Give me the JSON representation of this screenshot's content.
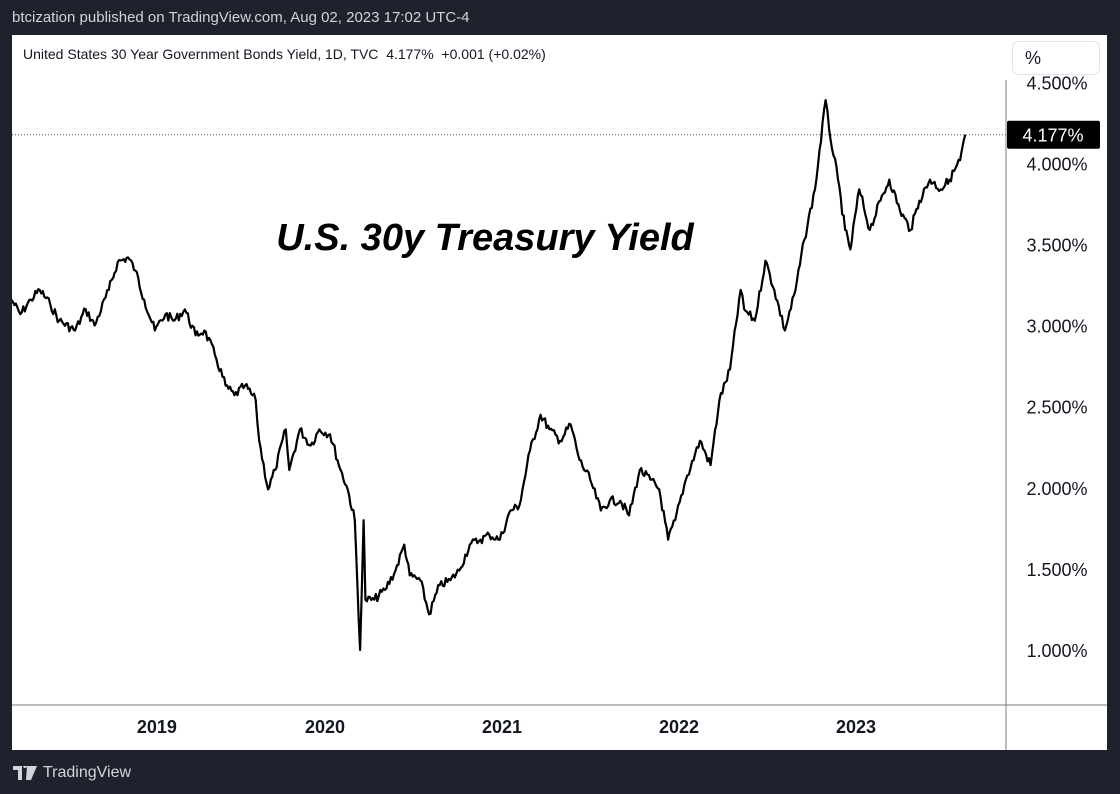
{
  "header": {
    "published": "btcization published on TradingView.com, Aug 02, 2023 17:02 UTC-4"
  },
  "legend": {
    "symbol": "United States 30 Year Government Bonds Yield, 1D, TVC",
    "last": "4.177%",
    "change": "+0.001 (+0.02%)"
  },
  "unit_button": "%",
  "footer": {
    "brand": "TradingView"
  },
  "chart_data": {
    "type": "line",
    "title": "U.S. 30y Treasury Yield",
    "xlabel": "",
    "ylabel": "",
    "ylim": [
      0.7,
      4.6
    ],
    "xlim": [
      2018.2,
      2023.8
    ],
    "yticks": [
      {
        "v": 4.5,
        "label": "4.500%"
      },
      {
        "v": 4.0,
        "label": "4.000%"
      },
      {
        "v": 3.5,
        "label": "3.500%"
      },
      {
        "v": 3.0,
        "label": "3.000%"
      },
      {
        "v": 2.5,
        "label": "2.500%"
      },
      {
        "v": 2.0,
        "label": "2.000%"
      },
      {
        "v": 1.5,
        "label": "1.500%"
      },
      {
        "v": 1.0,
        "label": "1.000%"
      }
    ],
    "xticks": [
      {
        "v": 2019.05,
        "label": "2019"
      },
      {
        "v": 2020.0,
        "label": "2020"
      },
      {
        "v": 2021.0,
        "label": "2021"
      },
      {
        "v": 2022.0,
        "label": "2022"
      },
      {
        "v": 2023.0,
        "label": "2023"
      }
    ],
    "last_value": 4.177,
    "last_label": "4.177%",
    "series": [
      {
        "name": "US30Y",
        "x": [
          2018.2,
          2018.25,
          2018.31,
          2018.36,
          2018.42,
          2018.47,
          2018.56,
          2018.62,
          2018.67,
          2018.75,
          2018.8,
          2018.86,
          2018.9,
          2018.95,
          2019.01,
          2019.07,
          2019.12,
          2019.18,
          2019.24,
          2019.29,
          2019.35,
          2019.41,
          2019.46,
          2019.52,
          2019.58,
          2019.6,
          2019.65,
          2019.69,
          2019.75,
          2019.77,
          2019.83,
          2019.89,
          2019.94,
          2020.0,
          2020.06,
          2020.1,
          2020.14,
          2020.17,
          2020.19,
          2020.2,
          2020.25,
          2020.31,
          2020.37,
          2020.42,
          2020.45,
          2020.51,
          2020.56,
          2020.62,
          2020.68,
          2020.73,
          2020.79,
          2020.85,
          2020.9,
          2020.96,
          2021.02,
          2021.07,
          2021.13,
          2021.19,
          2021.24,
          2021.3,
          2021.36,
          2021.41,
          2021.47,
          2021.53,
          2021.58,
          2021.64,
          2021.69,
          2021.75,
          2021.81,
          2021.86,
          2021.91,
          2021.95,
          2022.01,
          2022.09,
          2022.15,
          2022.2,
          2022.26,
          2022.32,
          2022.34,
          2022.4,
          2022.46,
          2022.51,
          2022.57,
          2022.63,
          2022.68,
          2022.74,
          2022.8,
          2022.82,
          2022.87,
          2022.91,
          2022.94,
          2022.99,
          2023.05,
          2023.11,
          2023.16,
          2023.22,
          2023.28,
          2023.33,
          2023.39,
          2023.45,
          2023.5,
          2023.56,
          2023.59
        ],
        "y": [
          3.16,
          3.07,
          3.16,
          3.22,
          3.13,
          3.03,
          2.97,
          3.1,
          3.0,
          3.22,
          3.39,
          3.42,
          3.34,
          3.16,
          2.97,
          3.07,
          3.03,
          3.1,
          2.94,
          2.97,
          2.82,
          2.63,
          2.57,
          2.63,
          2.54,
          2.29,
          1.99,
          2.11,
          2.36,
          2.11,
          2.36,
          2.26,
          2.36,
          2.33,
          2.11,
          1.99,
          1.8,
          1.0,
          1.8,
          1.31,
          1.31,
          1.37,
          1.49,
          1.65,
          1.46,
          1.43,
          1.22,
          1.4,
          1.43,
          1.49,
          1.65,
          1.68,
          1.71,
          1.68,
          1.86,
          1.89,
          2.23,
          2.45,
          2.36,
          2.29,
          2.39,
          2.17,
          2.05,
          1.86,
          1.92,
          1.92,
          1.83,
          2.11,
          2.05,
          1.99,
          1.68,
          1.8,
          2.05,
          2.29,
          2.14,
          2.54,
          2.73,
          3.22,
          3.1,
          3.03,
          3.4,
          3.22,
          2.97,
          3.22,
          3.53,
          3.84,
          4.39,
          4.21,
          3.9,
          3.59,
          3.47,
          3.84,
          3.59,
          3.77,
          3.9,
          3.71,
          3.59,
          3.77,
          3.9,
          3.84,
          3.9,
          4.02,
          4.177
        ]
      }
    ]
  }
}
